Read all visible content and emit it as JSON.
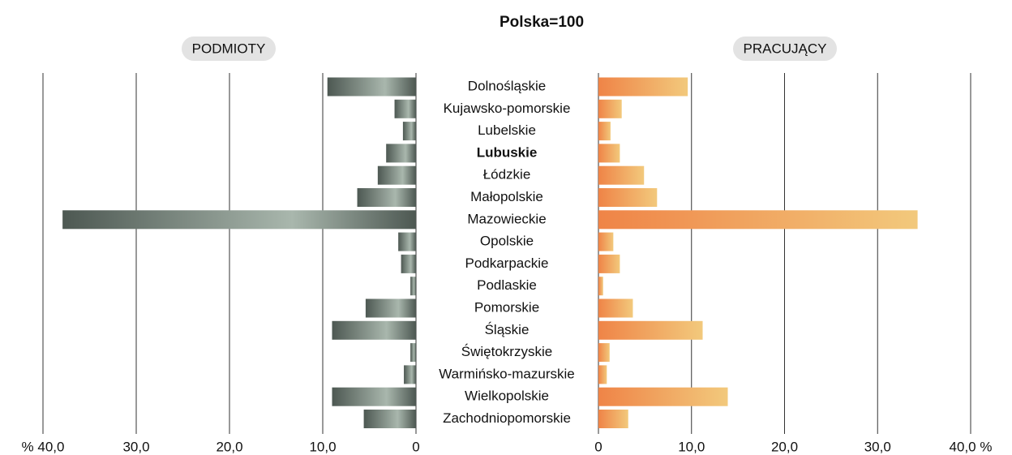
{
  "chart_data": {
    "type": "bar",
    "orientation": "horizontal",
    "title": "Polska=100",
    "categories": [
      "Dolnośląskie",
      "Kujawsko-pomorskie",
      "Lubelskie",
      "Lubuskie",
      "Łódzkie",
      "Małopolskie",
      "Mazowieckie",
      "Opolskie",
      "Podkarpackie",
      "Podlaskie",
      "Pomorskie",
      "Śląskie",
      "Świętokrzyskie",
      "Warmińsko-mazurskie",
      "Wielkopolskie",
      "Zachodniopomorskie"
    ],
    "highlight": 3,
    "grid": true,
    "series": [
      {
        "name": "PODMIOTY",
        "side": "left",
        "colors": [
          "#4d5852",
          "#a9b7ad"
        ],
        "values": [
          9.5,
          2.3,
          1.4,
          3.2,
          4.1,
          6.3,
          37.9,
          1.9,
          1.6,
          0.6,
          5.4,
          9.0,
          0.6,
          1.3,
          9.0,
          5.6
        ]
      },
      {
        "name": "PRACUJĄCY",
        "side": "right",
        "colors": [
          "#ef8447",
          "#f2c97c"
        ],
        "values": [
          9.6,
          2.5,
          1.3,
          2.3,
          4.9,
          6.3,
          34.3,
          1.6,
          2.3,
          0.5,
          3.7,
          11.2,
          1.2,
          0.9,
          13.9,
          3.2
        ]
      }
    ],
    "xlim": [
      0,
      40
    ],
    "xticks_left": [
      {
        "value": 40,
        "label": "% 40,0"
      },
      {
        "value": 30,
        "label": "30,0"
      },
      {
        "value": 20,
        "label": "20,0"
      },
      {
        "value": 10,
        "label": "10,0"
      },
      0
    ],
    "xticks_right": [
      0,
      {
        "value": 10,
        "label": "10,0"
      },
      {
        "value": 20,
        "label": "20,0"
      },
      {
        "value": 30,
        "label": "30,0"
      },
      {
        "value": 40,
        "label": "40,0 %"
      }
    ]
  }
}
